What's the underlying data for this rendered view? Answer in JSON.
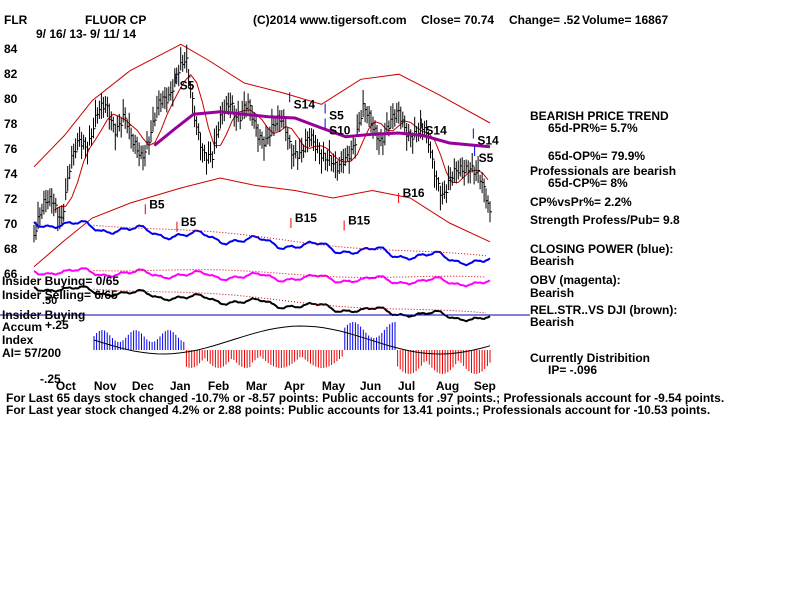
{
  "header": {
    "ticker": "FLR",
    "company": "FLUOR CP",
    "copyright": "(C)2014 www.tigersoft.com",
    "close": "Close=  70.74",
    "change": "Change= .52",
    "volume": "Volume= 16867",
    "date_range": "9/ 16/ 13- 9/ 11/ 14"
  },
  "panel_labels": {
    "insider_buying": "Insider Buying= 0/65",
    "insider_selling": "Insider Selling= 6/65",
    "insider_buying_line": "Insider Buying",
    "accum": "Accum",
    "index": "Index",
    "ai": "AI= 57/200",
    "accum_plus": "+.25",
    "accum_minus": "-.25",
    "accum_overlap": ".50"
  },
  "signals": [
    {
      "text": "S5",
      "date": "2014-01-09",
      "price": 81
    },
    {
      "text": "S14",
      "date": "2014-04-09",
      "price": 79.5
    },
    {
      "text": "S5",
      "date": "2014-05-07",
      "price": 78.6
    },
    {
      "text": "S10",
      "date": "2014-05-07",
      "price": 77.4
    },
    {
      "text": "S14",
      "date": "2014-07-22",
      "price": 77.4
    },
    {
      "text": "S14",
      "date": "2014-09-01",
      "price": 76.6
    },
    {
      "text": "S5",
      "date": "2014-09-02",
      "price": 75.2
    },
    {
      "text": "B5",
      "date": "2013-12-16",
      "price": 71.5
    },
    {
      "text": "B5",
      "date": "2014-01-10",
      "price": 70.1
    },
    {
      "text": "B15",
      "date": "2014-04-10",
      "price": 70.4
    },
    {
      "text": "B15",
      "date": "2014-05-22",
      "price": 70.2
    },
    {
      "text": "B16",
      "date": "2014-07-04",
      "price": 72.4
    }
  ],
  "side_panel": [
    {
      "text": "BEARISH PRICE TREND",
      "key": "trend"
    },
    {
      "text": "65d-PR%= 5.7%",
      "key": "pr"
    },
    {
      "text": "65d-OP%= 79.9%",
      "key": "op"
    },
    {
      "text": "Professionals are bearish",
      "key": "pros"
    },
    {
      "text": "65d-CP%= 8%",
      "key": "cp"
    },
    {
      "text": "CP%vsPr%=  2.2%",
      "key": "cpvspr"
    },
    {
      "text": "Strength Profess/Pub= 9.8",
      "key": "strength"
    },
    {
      "text": "CLOSING POWER (blue):",
      "key": "cp_title"
    },
    {
      "text": "Bearish",
      "key": "cp_val"
    },
    {
      "text": "OBV (magenta):",
      "key": "obv_title"
    },
    {
      "text": "Bearish",
      "key": "obv_val"
    },
    {
      "text": "REL.STR..VS DJI (brown):",
      "key": "rs_title"
    },
    {
      "text": "Bearish",
      "key": "rs_val"
    },
    {
      "text": "Currently Distribition",
      "key": "dist"
    },
    {
      "text": "IP= -.096",
      "key": "ip"
    }
  ],
  "footer": {
    "line1": "For Last 65 days stock changed -10.7% or -8.57 points:  Public accounts for  .97 points.;  Professionals account for -9.54 points.",
    "line2": "For Last year stock changed  4.2% or  2.88 points:  Public accounts for  13.41 points.;  Professionals account for -10.53 points."
  },
  "colors": {
    "price_bars": "#000000",
    "bands": "#cc0000",
    "ma": "#990099",
    "closing_power": "#0000ee",
    "obv": "#ff00ff",
    "rel_str": "#000000",
    "accum_pos": "#0000ee",
    "accum_neg": "#ee0000",
    "insider_line": "#0000aa",
    "signals": "#0000ee",
    "buy_arrow": "#ee0000"
  },
  "chart_data": {
    "type": "ohlc",
    "x_axis_labels": [
      "Oct",
      "Nov",
      "Dec",
      "Jan",
      "Feb",
      "Mar",
      "Apr",
      "May",
      "Jun",
      "Jul",
      "Aug",
      "Sep"
    ],
    "y_axis": {
      "ylim": [
        64,
        85
      ],
      "ticks": [
        66,
        68,
        70,
        72,
        74,
        76,
        78,
        80,
        82,
        84
      ]
    },
    "accum_index_ticks": [
      "+.25",
      "-.25"
    ],
    "price_series": {
      "name": "FLR",
      "points": [
        {
          "date": "2013-09-16",
          "close": 69.0
        },
        {
          "date": "2013-09-25",
          "close": 71.5
        },
        {
          "date": "2013-10-01",
          "close": 72.2
        },
        {
          "date": "2013-10-08",
          "close": 70.3
        },
        {
          "date": "2013-10-15",
          "close": 74.5
        },
        {
          "date": "2013-10-22",
          "close": 76.8
        },
        {
          "date": "2013-10-29",
          "close": 76.5
        },
        {
          "date": "2013-11-05",
          "close": 78.5
        },
        {
          "date": "2013-11-12",
          "close": 79.3
        },
        {
          "date": "2013-11-19",
          "close": 77.8
        },
        {
          "date": "2013-11-26",
          "close": 78.4
        },
        {
          "date": "2013-12-03",
          "close": 76.2
        },
        {
          "date": "2013-12-10",
          "close": 75.6
        },
        {
          "date": "2013-12-17",
          "close": 77.2
        },
        {
          "date": "2013-12-24",
          "close": 79.3
        },
        {
          "date": "2013-12-31",
          "close": 80.1
        },
        {
          "date": "2014-01-07",
          "close": 82.4
        },
        {
          "date": "2014-01-14",
          "close": 82.8
        },
        {
          "date": "2014-01-21",
          "close": 78.2
        },
        {
          "date": "2014-01-28",
          "close": 75.9
        },
        {
          "date": "2014-02-04",
          "close": 75.2
        },
        {
          "date": "2014-02-11",
          "close": 78.4
        },
        {
          "date": "2014-02-18",
          "close": 80.1
        },
        {
          "date": "2014-02-25",
          "close": 78.3
        },
        {
          "date": "2014-03-04",
          "close": 79.2
        },
        {
          "date": "2014-03-11",
          "close": 77.4
        },
        {
          "date": "2014-03-18",
          "close": 76.8
        },
        {
          "date": "2014-03-25",
          "close": 77.6
        },
        {
          "date": "2014-04-01",
          "close": 78.2
        },
        {
          "date": "2014-04-08",
          "close": 76.0
        },
        {
          "date": "2014-04-15",
          "close": 75.3
        },
        {
          "date": "2014-04-22",
          "close": 76.7
        },
        {
          "date": "2014-04-29",
          "close": 76.1
        },
        {
          "date": "2014-05-06",
          "close": 75.2
        },
        {
          "date": "2014-05-13",
          "close": 73.9
        },
        {
          "date": "2014-05-20",
          "close": 75.4
        },
        {
          "date": "2014-05-27",
          "close": 76.6
        },
        {
          "date": "2014-06-03",
          "close": 78.9
        },
        {
          "date": "2014-06-10",
          "close": 77.8
        },
        {
          "date": "2014-06-17",
          "close": 76.9
        },
        {
          "date": "2014-06-24",
          "close": 77.8
        },
        {
          "date": "2014-07-01",
          "close": 78.6
        },
        {
          "date": "2014-07-08",
          "close": 77.5
        },
        {
          "date": "2014-07-15",
          "close": 77.1
        },
        {
          "date": "2014-07-22",
          "close": 77.3
        },
        {
          "date": "2014-07-29",
          "close": 74.4
        },
        {
          "date": "2014-08-05",
          "close": 72.3
        },
        {
          "date": "2014-08-12",
          "close": 73.4
        },
        {
          "date": "2014-08-19",
          "close": 74.3
        },
        {
          "date": "2014-08-26",
          "close": 74.9
        },
        {
          "date": "2014-09-02",
          "close": 73.6
        },
        {
          "date": "2014-09-09",
          "close": 71.4
        },
        {
          "date": "2014-09-11",
          "close": 70.74
        }
      ]
    },
    "moving_average": {
      "points": [
        {
          "date": "2013-12-20",
          "value": 76.2
        },
        {
          "date": "2014-01-06",
          "value": 77.6
        },
        {
          "date": "2014-01-20",
          "value": 78.7
        },
        {
          "date": "2014-02-10",
          "value": 78.9
        },
        {
          "date": "2014-03-01",
          "value": 78.7
        },
        {
          "date": "2014-03-20",
          "value": 78.5
        },
        {
          "date": "2014-04-10",
          "value": 78.4
        },
        {
          "date": "2014-05-01",
          "value": 77.6
        },
        {
          "date": "2014-05-20",
          "value": 76.9
        },
        {
          "date": "2014-06-10",
          "value": 77.1
        },
        {
          "date": "2014-07-01",
          "value": 77.2
        },
        {
          "date": "2014-07-20",
          "value": 77.0
        },
        {
          "date": "2014-08-10",
          "value": 76.4
        },
        {
          "date": "2014-09-11",
          "value": 76.1
        }
      ]
    },
    "upper_band": {
      "points": [
        {
          "date": "2013-09-16",
          "value": 74.5
        },
        {
          "date": "2013-10-10",
          "value": 77.0
        },
        {
          "date": "2013-11-01",
          "value": 79.8
        },
        {
          "date": "2013-12-01",
          "value": 82.2
        },
        {
          "date": "2014-01-10",
          "value": 84.3
        },
        {
          "date": "2014-02-01",
          "value": 83.0
        },
        {
          "date": "2014-03-01",
          "value": 81.2
        },
        {
          "date": "2014-04-01",
          "value": 80.4
        },
        {
          "date": "2014-05-01",
          "value": 79.5
        },
        {
          "date": "2014-06-01",
          "value": 81.5
        },
        {
          "date": "2014-07-01",
          "value": 81.9
        },
        {
          "date": "2014-08-01",
          "value": 80.3
        },
        {
          "date": "2014-09-11",
          "value": 78.0
        }
      ]
    },
    "lower_band": {
      "points": [
        {
          "date": "2013-09-16",
          "value": 66.5
        },
        {
          "date": "2013-10-10",
          "value": 68.6
        },
        {
          "date": "2013-11-01",
          "value": 70.4
        },
        {
          "date": "2013-12-01",
          "value": 71.6
        },
        {
          "date": "2014-01-10",
          "value": 72.8
        },
        {
          "date": "2014-02-10",
          "value": 73.6
        },
        {
          "date": "2014-03-10",
          "value": 73.0
        },
        {
          "date": "2014-04-10",
          "value": 72.6
        },
        {
          "date": "2014-05-10",
          "value": 72.0
        },
        {
          "date": "2014-06-10",
          "value": 72.6
        },
        {
          "date": "2014-07-10",
          "value": 72.0
        },
        {
          "date": "2014-08-10",
          "value": 70.0
        },
        {
          "date": "2014-09-11",
          "value": 68.5
        }
      ]
    }
  }
}
